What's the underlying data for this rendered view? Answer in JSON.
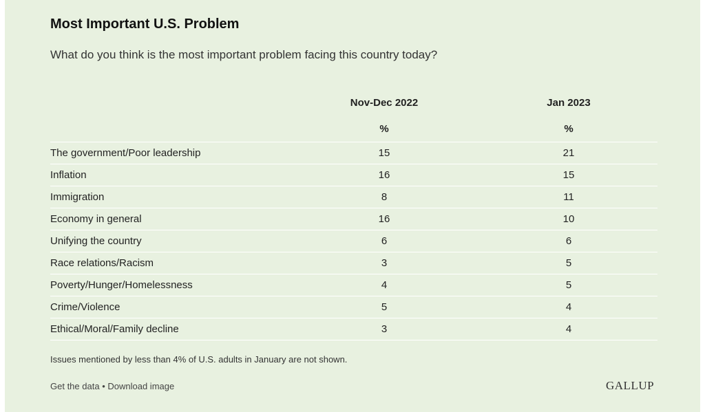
{
  "title": "Most Important U.S. Problem",
  "subtitle": "What do you think is the most important problem facing this country today?",
  "chart_data": {
    "type": "table",
    "columns": [
      "Nov-Dec 2022",
      "Jan 2023"
    ],
    "unit": "%",
    "rows": [
      {
        "label": "The government/Poor leadership",
        "values": [
          "15",
          "21"
        ]
      },
      {
        "label": "Inflation",
        "values": [
          "16",
          "15"
        ]
      },
      {
        "label": "Immigration",
        "values": [
          "8",
          "11"
        ]
      },
      {
        "label": "Economy in general",
        "values": [
          "16",
          "10"
        ]
      },
      {
        "label": "Unifying the country",
        "values": [
          "6",
          "6"
        ]
      },
      {
        "label": "Race relations/Racism",
        "values": [
          "3",
          "5"
        ]
      },
      {
        "label": "Poverty/Hunger/Homelessness",
        "values": [
          "4",
          "5"
        ]
      },
      {
        "label": "Crime/Violence",
        "values": [
          "5",
          "4"
        ]
      },
      {
        "label": "Ethical/Moral/Family decline",
        "values": [
          "3",
          "4"
        ]
      }
    ]
  },
  "note": "Issues mentioned by less than 4% of U.S. adults in January are not shown.",
  "footer": {
    "get_data": "Get the data",
    "separator": "•",
    "download": "Download image",
    "brand": "GALLUP"
  },
  "colors": {
    "background": "#e8f1e0",
    "row_divider": "#ffffff"
  }
}
